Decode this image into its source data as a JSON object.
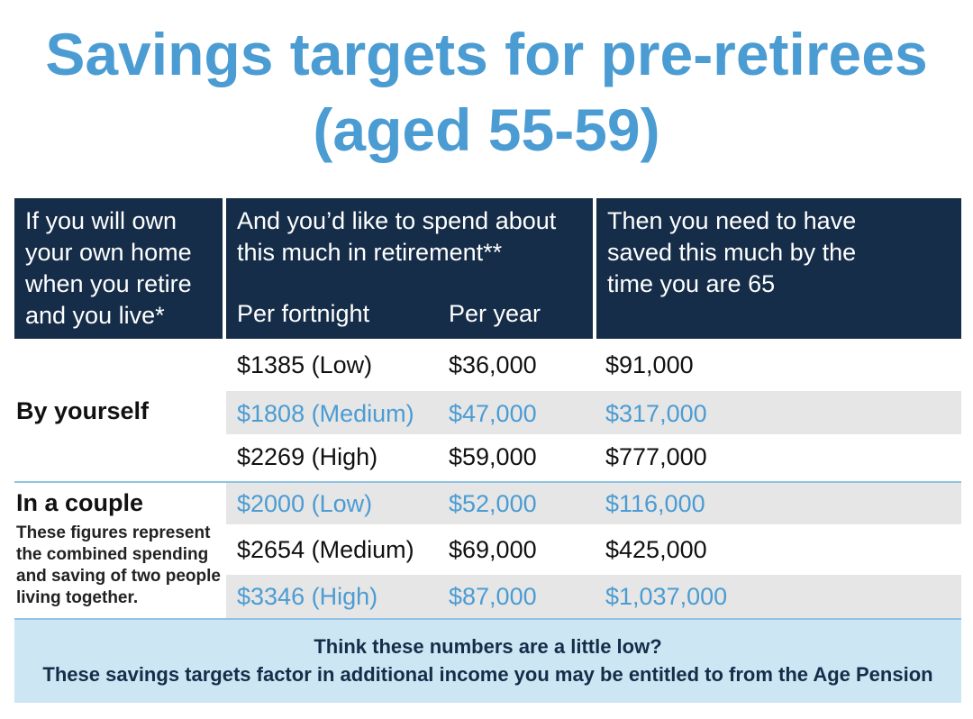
{
  "title": {
    "line1": "Savings targets for pre-retirees",
    "line2": "(aged 55-59)"
  },
  "table": {
    "headers": {
      "col1": [
        "If you will own",
        "your own home",
        "when you retire",
        "and you live*"
      ],
      "col2": [
        "And you’d like to spend about",
        "this much in retirement**"
      ],
      "col3": [
        "Then you need to have",
        "saved this much by the",
        "time you are 65"
      ],
      "sub_fortnight": "Per fortnight",
      "sub_year": "Per year"
    },
    "groups": [
      {
        "label": "By yourself",
        "note": "",
        "rows": [
          {
            "fortnight": "$1385 (Low)",
            "year": "$36,000",
            "saved": "$91,000"
          },
          {
            "fortnight": "$1808 (Medium)",
            "year": "$47,000",
            "saved": "$317,000"
          },
          {
            "fortnight": "$2269 (High)",
            "year": "$59,000",
            "saved": "$777,000"
          }
        ]
      },
      {
        "label": "In a couple",
        "note": "These figures represent the combined spending and saving of two people living together.",
        "rows": [
          {
            "fortnight": "$2000 (Low)",
            "year": "$52,000",
            "saved": "$116,000"
          },
          {
            "fortnight": "$2654 (Medium)",
            "year": "$69,000",
            "saved": "$425,000"
          },
          {
            "fortnight": "$3346 (High)",
            "year": "$87,000",
            "saved": "$1,037,000"
          }
        ]
      }
    ]
  },
  "footer": {
    "line1": "Think these numbers are a little low?",
    "line2": "These savings targets factor in additional income you may be entitled to from the Age Pension"
  },
  "colors": {
    "title_blue": "#4b9cd3",
    "header_navy": "#152d48",
    "band_grey": "#e6e6e6",
    "footer_bg": "#cde6f4",
    "divider": "#8fc3e6"
  }
}
